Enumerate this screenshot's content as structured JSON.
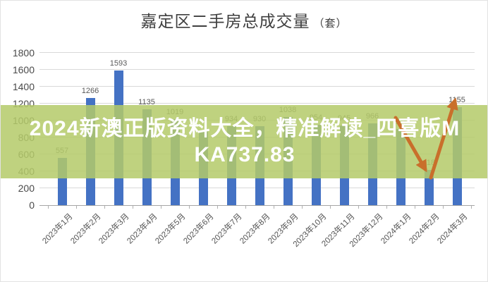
{
  "title": {
    "main": "嘉定区二手房总成交量",
    "unit": "（套）"
  },
  "watermark": {
    "full_text": "2024新澳正版资料大全，精准解读_四喜版MKA737.83",
    "line1": "2024新澳正版资料大全，精准解读_四喜版M",
    "line2": "KA737.83"
  },
  "colors": {
    "bar": "#4472C4",
    "gridline": "#d9d9d9",
    "axis_line": "#a6a6a6",
    "data_label": "#595959",
    "axis_label": "#4a4a4a",
    "title_text": "#3f3f3f",
    "watermark_band": "rgba(180,202,105,0.85)",
    "watermark_text": "#ffffff",
    "arrow": "#c96f2b"
  },
  "chart_data": {
    "type": "bar",
    "title": "嘉定区二手房总成交量（套）",
    "categories": [
      "2023年1月",
      "2023年2月",
      "2023年3月",
      "2023年4月",
      "2023年5月",
      "2023年6月",
      "2023年7月",
      "2023年8月",
      "2023年9月",
      "2023年10月",
      "2023年11月",
      "2023年12月",
      "2024年1月",
      "2024年2月",
      "2024年3月"
    ],
    "values": [
      557,
      1266,
      1593,
      1135,
      1019,
      880,
      934,
      930,
      1038,
      954,
      945,
      966,
      904,
      418,
      1155
    ],
    "bar_labels": [
      "557",
      "1266",
      "1593",
      "1135",
      "1019",
      "",
      "934",
      "930",
      "1038",
      "954",
      "945",
      "966",
      "904",
      "418",
      "1155"
    ],
    "xlabel": "",
    "ylabel": "",
    "ylim": [
      0,
      1800
    ],
    "ytick_step": 200,
    "grid": true,
    "legend": false,
    "annotations": [
      "orange arrow pointing down toward 2024年2月 bar (418)",
      "orange arrow pointing up toward 2024年3月 bar (1155)"
    ]
  }
}
